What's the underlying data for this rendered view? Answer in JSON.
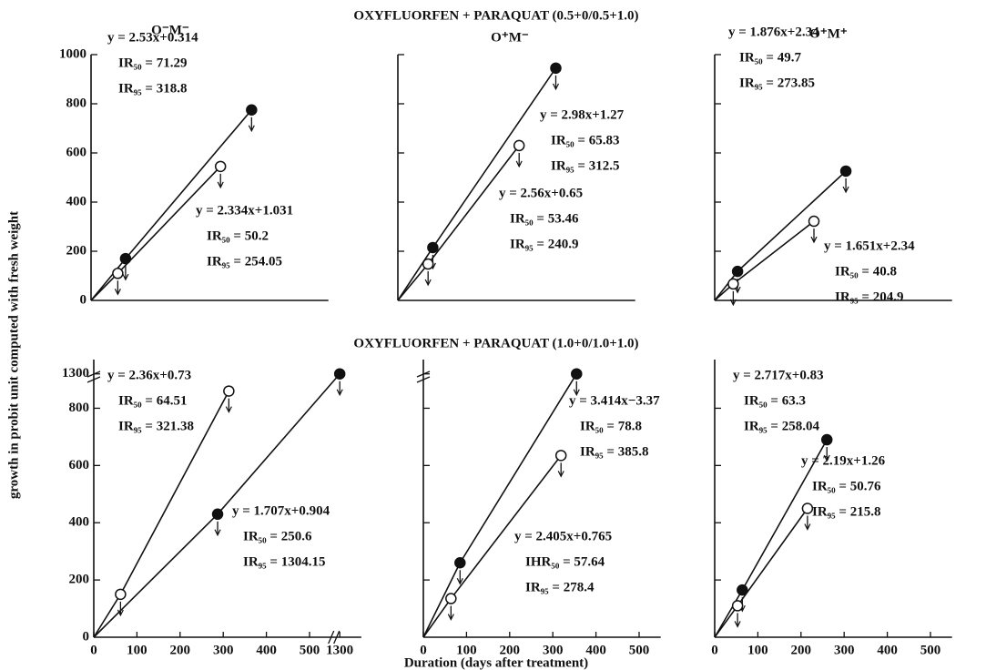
{
  "figure": {
    "titles": [
      "OXYFLUORFEN + PARAQUAT (0.5+0/0.5+1.0)",
      "OXYFLUORFEN + PARAQUAT (1.0+0/1.0+1.0)"
    ],
    "y_label": "growth in probit unit computed with fresh weight",
    "x_label": "Duration (days after treatment)"
  },
  "chart_data": [
    {
      "type": "line",
      "title": "O⁻M⁻",
      "xlim": [
        0,
        550
      ],
      "ylim": [
        0,
        1000
      ],
      "yticks": [
        0,
        200,
        400,
        600,
        800,
        1000
      ],
      "series": [
        {
          "marker": "filled",
          "color": "#111111",
          "x": [
            80,
            372
          ],
          "values": [
            170,
            775
          ]
        },
        {
          "marker": "open",
          "color": "#111111",
          "x": [
            62,
            300
          ],
          "values": [
            110,
            545
          ]
        }
      ],
      "annotations": [
        [
          "y = 2.53x+0.314",
          "IR₅₀ = 71.29",
          "IR₉₅ = 318.8"
        ],
        [
          "y = 2.334x+1.031",
          "IR₅₀ = 50.2",
          "IR₉₅ = 254.05"
        ]
      ]
    },
    {
      "type": "line",
      "title": "O⁺M⁻",
      "xlim": [
        0,
        550
      ],
      "ylim": [
        0,
        1000
      ],
      "series": [
        {
          "marker": "filled",
          "color": "#111111",
          "x": [
            81,
            366
          ],
          "values": [
            215,
            945
          ]
        },
        {
          "marker": "open",
          "color": "#111111",
          "x": [
            70,
            281
          ],
          "values": [
            148,
            630
          ]
        }
      ],
      "annotations": [
        [
          "y = 2.98x+1.27",
          "IR₅₀ = 65.83",
          "IR₉₅ = 312.5"
        ],
        [
          "y = 2.56x+0.65",
          "IR₅₀ = 53.46",
          "IR₉₅ = 240.9"
        ]
      ]
    },
    {
      "type": "line",
      "title": "O⁺M⁺",
      "xlim": [
        0,
        550
      ],
      "ylim": [
        0,
        1000
      ],
      "series": [
        {
          "marker": "filled",
          "color": "#111111",
          "x": [
            53,
            304
          ],
          "values": [
            118,
            526
          ]
        },
        {
          "marker": "open",
          "color": "#111111",
          "x": [
            43,
            230
          ],
          "values": [
            67,
            322
          ]
        }
      ],
      "annotations": [
        [
          "y = 1.876x+2.34",
          "IR₅₀ = 49.7",
          "IR₉₅ = 273.85"
        ],
        [
          "y = 1.651x+2.34",
          "IR₅₀ = 40.8",
          "IR₉₅ = 204.9"
        ]
      ]
    },
    {
      "type": "line",
      "xlim": [
        0,
        1350
      ],
      "xbreak": [
        550,
        1280
      ],
      "xticks": [
        0,
        100,
        200,
        300,
        400,
        500,
        1300
      ],
      "ylim": [
        0,
        1350
      ],
      "ybreak": [
        900,
        1280
      ],
      "yticks": [
        0,
        200,
        400,
        600,
        800,
        1300
      ],
      "series": [
        {
          "marker": "filled",
          "color": "#111111",
          "x": [
            287,
            1300
          ],
          "values": [
            430,
            1300
          ]
        },
        {
          "marker": "open",
          "color": "#111111",
          "x": [
            62,
            313
          ],
          "values": [
            150,
            860
          ]
        }
      ],
      "annotations": [
        [
          "y = 2.36x+0.73",
          "IR₅₀ = 64.51",
          "IR₉₅ = 321.38"
        ],
        [
          "y = 1.707x+0.904",
          "IR₅₀ = 250.6",
          "IR₉₅ = 1304.15"
        ]
      ]
    },
    {
      "type": "line",
      "xlim": [
        0,
        550
      ],
      "xticks": [
        0,
        100,
        200,
        300,
        400,
        500
      ],
      "ylim": [
        0,
        1350
      ],
      "ybreak": [
        900,
        1280
      ],
      "series": [
        {
          "marker": "filled",
          "color": "#111111",
          "x": [
            85,
            355
          ],
          "values": [
            260,
            1300
          ]
        },
        {
          "marker": "open",
          "color": "#111111",
          "x": [
            64,
            319
          ],
          "values": [
            135,
            635
          ]
        }
      ],
      "annotations": [
        [
          "y = 3.414x−3.37",
          "IR₅₀ = 78.8",
          "IR₉₅ = 385.8"
        ],
        [
          "y = 2.405x+0.765",
          "IHR₅₀ = 57.64",
          "IR₉₅ = 278.4"
        ]
      ]
    },
    {
      "type": "line",
      "xlim": [
        0,
        550
      ],
      "xticks": [
        0,
        100,
        200,
        300,
        400,
        500
      ],
      "ylim": [
        0,
        970
      ],
      "series": [
        {
          "marker": "filled",
          "color": "#111111",
          "x": [
            64,
            260
          ],
          "values": [
            165,
            690
          ]
        },
        {
          "marker": "open",
          "color": "#111111",
          "x": [
            53,
            215
          ],
          "values": [
            110,
            450
          ]
        }
      ],
      "annotations": [
        [
          "y = 2.717x+0.83",
          "IR₅₀ = 63.3",
          "IR₉₅ = 258.04"
        ],
        [
          "y = 2.19x+1.26",
          "IR₅₀ = 50.76",
          "IR₉₅ = 215.8"
        ]
      ]
    }
  ]
}
